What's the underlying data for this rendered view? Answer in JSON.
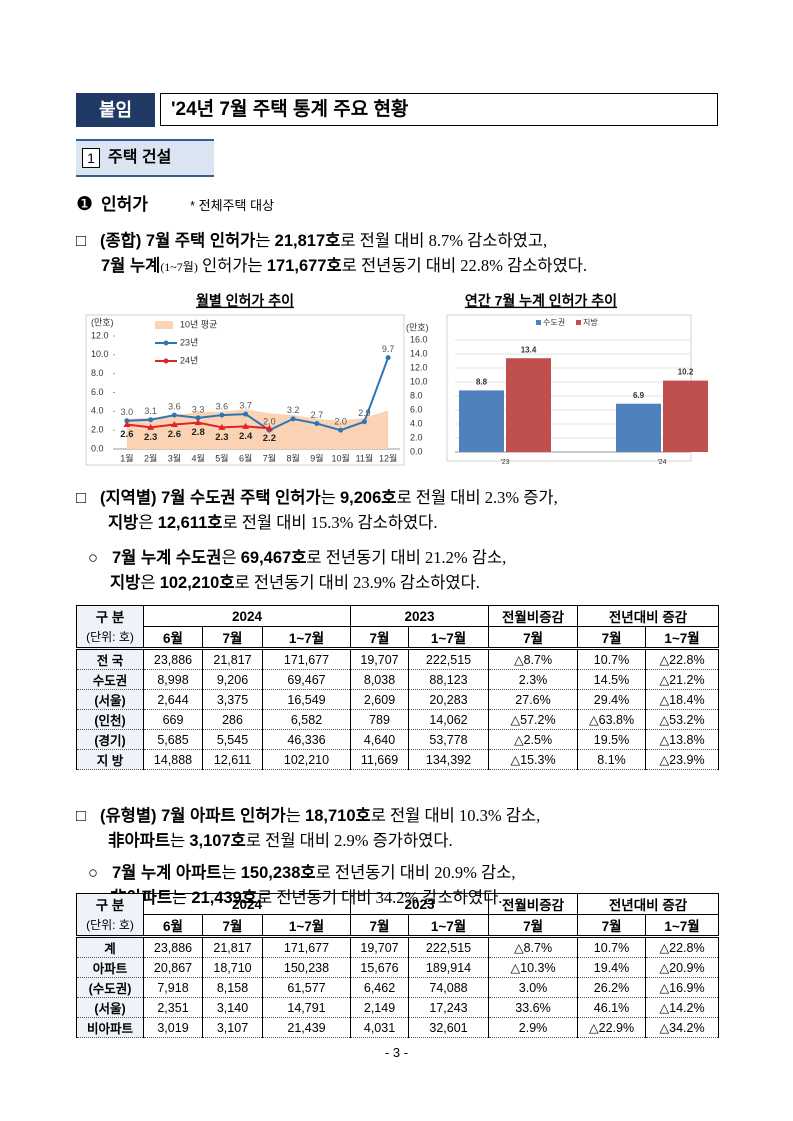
{
  "header": {
    "tag": "붙임",
    "title": "'24년 7월 주택 통계 주요 현황"
  },
  "section": {
    "number": "1",
    "title": "주택 건설"
  },
  "subsection": {
    "marker": "❶",
    "title": "인허가",
    "note": "* 전체주택 대상"
  },
  "paragraphs": [
    {
      "marker": "□",
      "lines": [
        [
          {
            "text": "(종합) 7월 주택 인허가",
            "bold": true
          },
          {
            "text": "는 "
          },
          {
            "text": "21,817호",
            "bold": true
          },
          {
            "text": "로 전월 대비 8.7% 감소하였고,"
          }
        ],
        [
          {
            "text": "7월 누계",
            "bold": true
          },
          {
            "text": "(1~7월)",
            "small": true
          },
          {
            "text": " 인허가는 "
          },
          {
            "text": "171,677호",
            "bold": true
          },
          {
            "text": "로 전년동기 대비 22.8% 감소하였다."
          }
        ]
      ]
    },
    {
      "marker": "□",
      "lines": [
        [
          {
            "text": "(지역별) 7월 수도권 주택 인허가",
            "bold": true
          },
          {
            "text": "는 "
          },
          {
            "text": "9,206호",
            "bold": true
          },
          {
            "text": "로 전월 대비 2.3% 증가,"
          }
        ],
        [
          {
            "text": "지방",
            "bold": true
          },
          {
            "text": "은 "
          },
          {
            "text": "12,611호",
            "bold": true
          },
          {
            "text": "로 전월 대비 15.3% 감소하였다."
          }
        ]
      ]
    },
    {
      "marker": "○",
      "lines": [
        [
          {
            "text": "7월 누계 수도권",
            "bold": true
          },
          {
            "text": "은 "
          },
          {
            "text": "69,467호",
            "bold": true
          },
          {
            "text": "로 전년동기 대비 21.2% 감소,"
          }
        ],
        [
          {
            "text": "지방",
            "bold": true
          },
          {
            "text": "은 "
          },
          {
            "text": "102,210호",
            "bold": true
          },
          {
            "text": "로 전년동기 대비 23.9% 감소하였다."
          }
        ]
      ]
    },
    {
      "marker": "□",
      "lines": [
        [
          {
            "text": "(유형별) 7월 아파트 인허가",
            "bold": true
          },
          {
            "text": "는 "
          },
          {
            "text": "18,710호",
            "bold": true
          },
          {
            "text": "로 전월 대비 10.3% 감소,"
          }
        ],
        [
          {
            "text": "非아파트",
            "bold": true
          },
          {
            "text": "는 "
          },
          {
            "text": "3,107호",
            "bold": true
          },
          {
            "text": "로 전월 대비 2.9% 증가하였다."
          }
        ]
      ]
    },
    {
      "marker": "○",
      "lines": [
        [
          {
            "text": "7월 누계 아파트",
            "bold": true
          },
          {
            "text": "는 "
          },
          {
            "text": "150,238호",
            "bold": true
          },
          {
            "text": "로 전년동기 대비 20.9% 감소,"
          }
        ],
        [
          {
            "text": "非아파트",
            "bold": true
          },
          {
            "text": "는 "
          },
          {
            "text": "21,439호",
            "bold": true
          },
          {
            "text": "로 전년동기 대비 34.2% 감소하였다."
          }
        ]
      ]
    }
  ],
  "chart_data": [
    {
      "type": "line",
      "title": "월별 인허가 추이",
      "ylabel": "(만호)",
      "categories": [
        "1월",
        "2월",
        "3월",
        "4월",
        "5월",
        "6월",
        "7월",
        "8월",
        "9월",
        "10월",
        "11월",
        "12월"
      ],
      "ylim": [
        0,
        12
      ],
      "yticks": [
        {
          "value": 0,
          "label": "0.0"
        },
        {
          "value": 2,
          "label": "2.0"
        },
        {
          "value": 4,
          "label": "4.0"
        },
        {
          "value": 6,
          "label": "6.0"
        },
        {
          "value": 8,
          "label": "8.0"
        },
        {
          "value": 10,
          "label": "10.0"
        },
        {
          "value": 12,
          "label": "12.0"
        }
      ],
      "series": [
        {
          "name": "10년 평균",
          "type": "area",
          "color": "#fbd3b4",
          "values": [
            3.2,
            3.3,
            3.6,
            3.9,
            4.0,
            4.2,
            3.8,
            3.6,
            3.2,
            3.0,
            3.3,
            4.1
          ]
        },
        {
          "name": "23년",
          "color": "#2e75b6",
          "values": [
            3.0,
            3.1,
            3.6,
            3.3,
            3.6,
            3.7,
            2.0,
            3.2,
            2.7,
            2.0,
            2.9,
            9.7
          ],
          "value_labels": [
            "3.0",
            "3.1",
            "3.6",
            "3.3",
            "3.6",
            "3.7",
            "2.0",
            "3.2",
            "2.7",
            "2.0",
            "2.9",
            "9.7"
          ]
        },
        {
          "name": "24년",
          "color": "#e02424",
          "values": [
            2.6,
            2.3,
            2.6,
            2.8,
            2.3,
            2.4,
            2.2,
            null,
            null,
            null,
            null,
            null
          ],
          "value_labels": [
            "2.6",
            "2.3",
            "2.6",
            "2.8",
            "2.3",
            "2.4",
            "2.2",
            null,
            null,
            null,
            null,
            null
          ]
        }
      ]
    },
    {
      "type": "bar",
      "title": "연간 7월 누계 인허가 추이",
      "ylabel": "(만호)",
      "categories": [
        "'23",
        "'24"
      ],
      "ylim": [
        0,
        16
      ],
      "yticks": [
        {
          "value": 0,
          "label": "0.0"
        },
        {
          "value": 2,
          "label": "2.0"
        },
        {
          "value": 4,
          "label": "4.0"
        },
        {
          "value": 6,
          "label": "6.0"
        },
        {
          "value": 8,
          "label": "8.0"
        },
        {
          "value": 10,
          "label": "10.0"
        },
        {
          "value": 12,
          "label": "12.0"
        },
        {
          "value": 14,
          "label": "14.0"
        },
        {
          "value": 16,
          "label": "16.0"
        }
      ],
      "grid": true,
      "series": [
        {
          "name": "수도권",
          "color": "#4f81bd",
          "values": [
            8.8,
            6.9
          ]
        },
        {
          "name": "지방",
          "color": "#c0504d",
          "values": [
            13.4,
            10.2
          ]
        }
      ]
    }
  ],
  "tables": [
    {
      "header_top": [
        "구 분",
        "2024",
        "2023",
        "전월비증감",
        "전년대비 증감"
      ],
      "header_sub": [
        "(단위: 호)",
        "6월",
        "7월",
        "1~7월",
        "7월",
        "1~7월",
        "7월",
        "7월",
        "1~7월"
      ],
      "rows": [
        [
          "전 국",
          "23,886",
          "21,817",
          "171,677",
          "19,707",
          "222,515",
          "△8.7%",
          "10.7%",
          "△22.8%"
        ],
        [
          "수도권",
          "8,998",
          "9,206",
          "69,467",
          "8,038",
          "88,123",
          "2.3%",
          "14.5%",
          "△21.2%"
        ],
        [
          "(서울)",
          "2,644",
          "3,375",
          "16,549",
          "2,609",
          "20,283",
          "27.6%",
          "29.4%",
          "△18.4%"
        ],
        [
          "(인천)",
          "669",
          "286",
          "6,582",
          "789",
          "14,062",
          "△57.2%",
          "△63.8%",
          "△53.2%"
        ],
        [
          "(경기)",
          "5,685",
          "5,545",
          "46,336",
          "4,640",
          "53,778",
          "△2.5%",
          "19.5%",
          "△13.8%"
        ],
        [
          "지 방",
          "14,888",
          "12,611",
          "102,210",
          "11,669",
          "134,392",
          "△15.3%",
          "8.1%",
          "△23.9%"
        ]
      ]
    },
    {
      "header_top": [
        "구 분",
        "2024",
        "2023",
        "전월비증감",
        "전년대비 증감"
      ],
      "header_sub": [
        "(단위: 호)",
        "6월",
        "7월",
        "1~7월",
        "7월",
        "1~7월",
        "7월",
        "7월",
        "1~7월"
      ],
      "rows": [
        [
          "계",
          "23,886",
          "21,817",
          "171,677",
          "19,707",
          "222,515",
          "△8.7%",
          "10.7%",
          "△22.8%"
        ],
        [
          "아파트",
          "20,867",
          "18,710",
          "150,238",
          "15,676",
          "189,914",
          "△10.3%",
          "19.4%",
          "△20.9%"
        ],
        [
          "(수도권)",
          "7,918",
          "8,158",
          "61,577",
          "6,462",
          "74,088",
          "3.0%",
          "26.2%",
          "△16.9%"
        ],
        [
          "(서울)",
          "2,351",
          "3,140",
          "14,791",
          "2,149",
          "17,243",
          "33.6%",
          "46.1%",
          "△14.2%"
        ],
        [
          "비아파트",
          "3,019",
          "3,107",
          "21,439",
          "4,031",
          "32,601",
          "2.9%",
          "△22.9%",
          "△34.2%"
        ]
      ]
    }
  ],
  "footer": "- 3 -"
}
